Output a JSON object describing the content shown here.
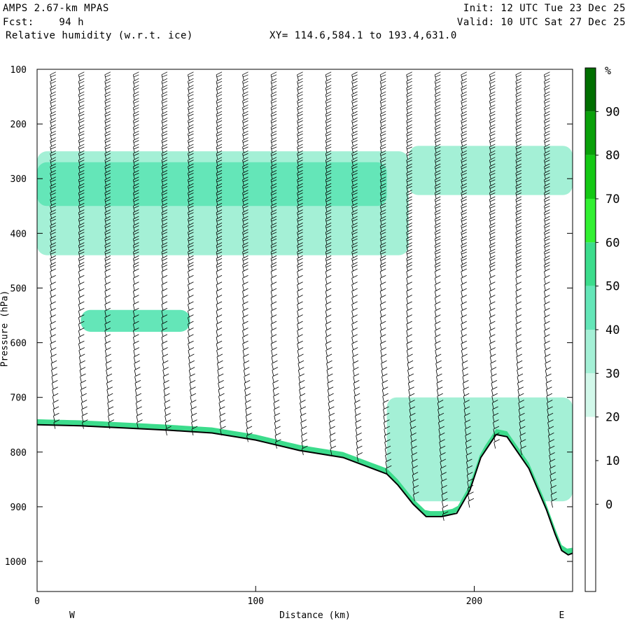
{
  "header": {
    "model": "AMPS 2.67-km MPAS",
    "fcst": "Fcst:    94 h",
    "field": "Relative humidity (w.r.t. ice)",
    "xy": "XY= 114.6,584.1 to 193.4,631.0",
    "init": "Init: 12 UTC Tue 23 Dec 25",
    "valid": "Valid: 10 UTC Sat 27 Dec 25"
  },
  "colors": {
    "rh_levels": [
      "#ffffff",
      "#ffffff",
      "#ffffff",
      "#ffffff",
      "#d2f8ea",
      "#a4f0d6",
      "#64e6b8",
      "#3cdc8c",
      "#32f032",
      "#14c814",
      "#0aa00a",
      "#006e00"
    ],
    "terrain_line": "#000000",
    "barb": "#000000"
  },
  "chart_data": {
    "type": "cross-section",
    "title": "Relative humidity (w.r.t. ice)",
    "xlabel": "Distance (km)",
    "ylabel": "Pressure (hPa)",
    "xlim": [
      0,
      245
    ],
    "ylim": [
      1055,
      100
    ],
    "x_ticks": [
      0,
      100,
      200
    ],
    "y_ticks": [
      100,
      200,
      300,
      400,
      500,
      600,
      700,
      800,
      900,
      1000
    ],
    "end_labels": {
      "left": "W",
      "right": "E"
    },
    "colorbar": {
      "unit": "%",
      "labels": [
        "90",
        "80",
        "70",
        "60",
        "50",
        "40",
        "30",
        "20",
        "10",
        "0"
      ]
    },
    "terrain_profile": [
      [
        0,
        750
      ],
      [
        20,
        752
      ],
      [
        40,
        756
      ],
      [
        60,
        760
      ],
      [
        80,
        765
      ],
      [
        100,
        778
      ],
      [
        120,
        797
      ],
      [
        140,
        810
      ],
      [
        150,
        825
      ],
      [
        160,
        840
      ],
      [
        165,
        860
      ],
      [
        172,
        895
      ],
      [
        178,
        918
      ],
      [
        185,
        918
      ],
      [
        192,
        912
      ],
      [
        198,
        870
      ],
      [
        203,
        810
      ],
      [
        210,
        768
      ],
      [
        215,
        772
      ],
      [
        225,
        830
      ],
      [
        233,
        905
      ],
      [
        237,
        950
      ],
      [
        240,
        980
      ],
      [
        243,
        988
      ],
      [
        245,
        985
      ]
    ],
    "moist_bands": [
      {
        "rh": 40,
        "p_top": 250,
        "p_bottom": 440,
        "x_start": 0,
        "x_end": 170
      },
      {
        "rh": 50,
        "p_top": 270,
        "p_bottom": 350,
        "x_start": 0,
        "x_end": 160
      },
      {
        "rh": 40,
        "p_top": 240,
        "p_bottom": 330,
        "x_start": 170,
        "x_end": 245
      },
      {
        "rh": 50,
        "p_top": 540,
        "p_bottom": 580,
        "x_start": 20,
        "x_end": 70
      },
      {
        "rh": 40,
        "p_top": 700,
        "p_bottom": 890,
        "x_start": 160,
        "x_end": 245
      }
    ],
    "barb_columns_km": [
      6,
      19,
      31,
      44,
      57,
      69,
      82,
      94,
      107,
      119,
      132,
      144,
      157,
      169,
      182,
      194,
      207,
      219,
      232
    ]
  }
}
